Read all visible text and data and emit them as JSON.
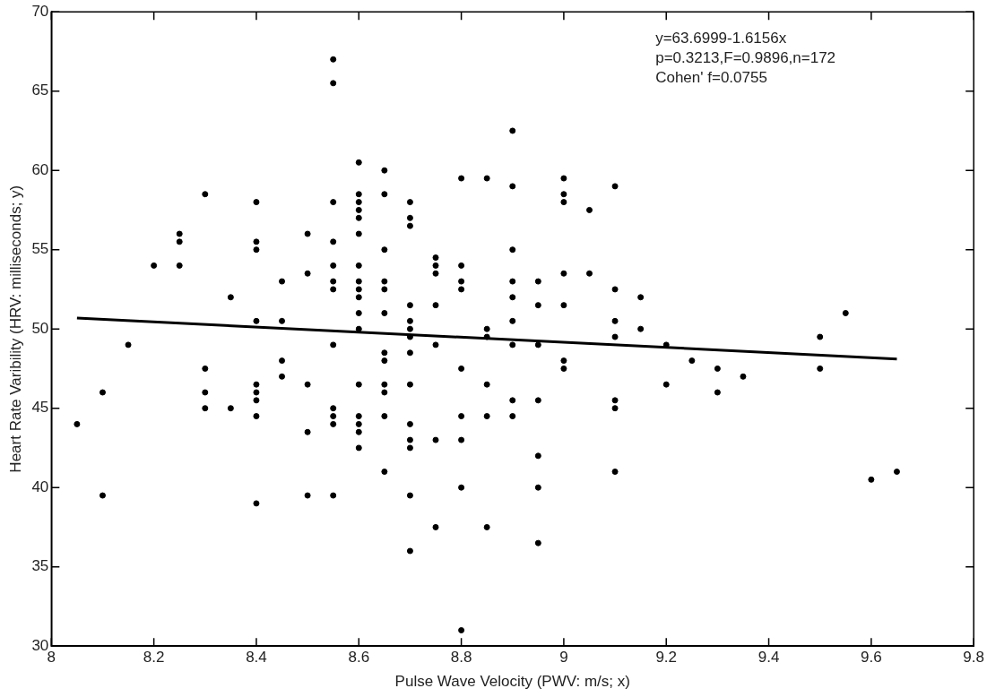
{
  "chart_data": {
    "type": "scatter",
    "xlabel": "Pulse Wave Velocity (PWV: m/s; x)",
    "ylabel": "Heart Rate Varibility (HRV: milliseconds; y)",
    "xlim": [
      8,
      9.8
    ],
    "xticks": [
      8,
      8.2,
      8.4,
      8.6,
      8.8,
      9,
      9.2,
      9.4,
      9.6,
      9.8
    ],
    "ylim": [
      30,
      70
    ],
    "yticks": [
      30,
      35,
      40,
      45,
      50,
      55,
      60,
      65,
      70
    ],
    "grid": false,
    "legend": false,
    "marker": "circle",
    "annotations": [
      "y=63.6999-1.6156x",
      "p=0.3213,F=0.9896,n=172",
      "Cohen' f=0.0755"
    ],
    "series": [
      {
        "color": "#000000",
        "x": [
          8.05,
          8.1,
          8.1,
          8.15,
          8.2,
          8.25,
          8.25,
          8.25,
          8.3,
          8.3,
          8.3,
          8.3,
          8.35,
          8.35,
          8.4,
          8.4,
          8.4,
          8.4,
          8.4,
          8.4,
          8.4,
          8.4,
          8.4,
          8.45,
          8.45,
          8.45,
          8.45,
          8.5,
          8.5,
          8.5,
          8.5,
          8.5,
          8.55,
          8.55,
          8.55,
          8.55,
          8.55,
          8.55,
          8.55,
          8.55,
          8.55,
          8.55,
          8.55,
          8.55,
          8.6,
          8.6,
          8.6,
          8.6,
          8.6,
          8.6,
          8.6,
          8.6,
          8.6,
          8.6,
          8.6,
          8.6,
          8.6,
          8.6,
          8.6,
          8.6,
          8.6,
          8.65,
          8.65,
          8.65,
          8.65,
          8.65,
          8.65,
          8.65,
          8.65,
          8.65,
          8.65,
          8.65,
          8.65,
          8.7,
          8.7,
          8.7,
          8.7,
          8.7,
          8.7,
          8.7,
          8.7,
          8.7,
          8.7,
          8.7,
          8.7,
          8.7,
          8.7,
          8.75,
          8.75,
          8.75,
          8.75,
          8.75,
          8.75,
          8.75,
          8.8,
          8.8,
          8.8,
          8.8,
          8.8,
          8.8,
          8.8,
          8.8,
          8.8,
          8.85,
          8.85,
          8.85,
          8.85,
          8.85,
          8.85,
          8.9,
          8.9,
          8.9,
          8.9,
          8.9,
          8.9,
          8.9,
          8.9,
          8.9,
          8.95,
          8.95,
          8.95,
          8.95,
          8.95,
          8.95,
          8.95,
          9,
          9,
          9,
          9,
          9,
          9,
          9,
          9.05,
          9.05,
          9.1,
          9.1,
          9.1,
          9.1,
          9.1,
          9.1,
          9.1,
          9.15,
          9.15,
          9.2,
          9.2,
          9.25,
          9.3,
          9.3,
          9.35,
          9.5,
          9.5,
          9.55,
          9.6,
          9.65
        ],
        "values": [
          44,
          46,
          39.5,
          49,
          54,
          56,
          55.5,
          54,
          58.5,
          47.5,
          46,
          45,
          52,
          45,
          58,
          55.5,
          55,
          50.5,
          46.5,
          46,
          45.5,
          44.5,
          39,
          53,
          50.5,
          48,
          47,
          56,
          53.5,
          46.5,
          43.5,
          39.5,
          67,
          65.5,
          58,
          55.5,
          54,
          53,
          52.5,
          49,
          45,
          44.5,
          44,
          39.5,
          60.5,
          58.5,
          58,
          57.5,
          57,
          56,
          54,
          53,
          52.5,
          52,
          51,
          50,
          46.5,
          44.5,
          44,
          43.5,
          42.5,
          60,
          58.5,
          55,
          53,
          52.5,
          51,
          48.5,
          48,
          46.5,
          46,
          44.5,
          41,
          58,
          57,
          56.5,
          51.5,
          50.5,
          50,
          49.5,
          48.5,
          46.5,
          44,
          43,
          42.5,
          39.5,
          36,
          54.5,
          54,
          53.5,
          51.5,
          49,
          43,
          37.5,
          59.5,
          54,
          53,
          52.5,
          47.5,
          44.5,
          43,
          40,
          31,
          59.5,
          50,
          49.5,
          46.5,
          44.5,
          37.5,
          62.5,
          59,
          55,
          53,
          52,
          50.5,
          49,
          45.5,
          44.5,
          53,
          51.5,
          49,
          45.5,
          42,
          40,
          36.5,
          59.5,
          58.5,
          58,
          53.5,
          51.5,
          48,
          47.5,
          57.5,
          53.5,
          59,
          52.5,
          50.5,
          49.5,
          45.5,
          45,
          41,
          52,
          50,
          49,
          46.5,
          48,
          47.5,
          46,
          47,
          49.5,
          47.5,
          51,
          40.5,
          41
        ]
      },
      {
        "type": "line",
        "color": "#000000",
        "marker": "none",
        "line_style": "solid",
        "x": [
          8.05,
          9.65
        ],
        "values": [
          50.69,
          48.11
        ]
      }
    ]
  }
}
